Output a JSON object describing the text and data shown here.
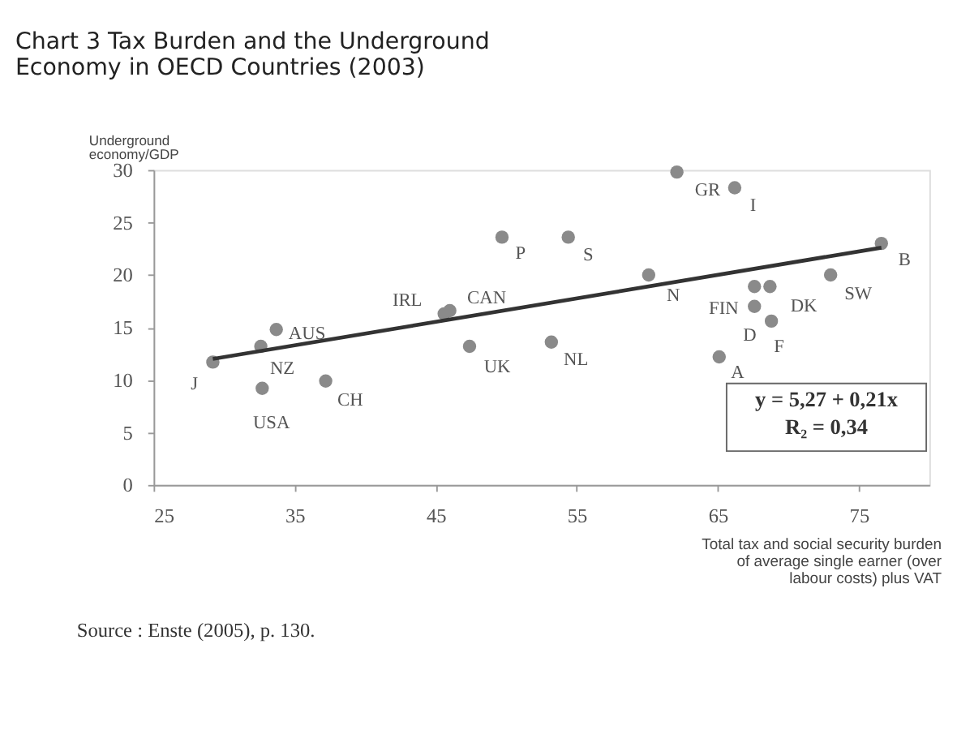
{
  "chart_data": {
    "type": "scatter",
    "title": [
      "Chart 3  Tax Burden and the Underground",
      "Economy in OECD Countries (2003)"
    ],
    "xlabel": "Total tax and social security burden\nof average single earner (over\nlabour costs) plus VAT",
    "ylabel": "Underground\neconomy/GDP",
    "xlim": [
      25,
      80
    ],
    "xticks": [
      25,
      35,
      45,
      55,
      65,
      75
    ],
    "ylim": [
      0,
      30
    ],
    "yticks": [
      0,
      5,
      10,
      15,
      20,
      25,
      30
    ],
    "grid": false,
    "series": [
      {
        "color": "#8a8a8a",
        "marker": "circle",
        "x": [
          29.2,
          32.6,
          33.7,
          32.7,
          37.2,
          45.6,
          46.0,
          47.4,
          49.7,
          54.4,
          53.2,
          60.1,
          62.1,
          66.2,
          67.6,
          68.7,
          67.6,
          68.8,
          65.1,
          73.0,
          76.6
        ],
        "values": [
          11.7,
          13.2,
          14.8,
          9.2,
          9.9,
          16.3,
          16.6,
          13.2,
          23.6,
          23.6,
          13.6,
          20.0,
          29.8,
          28.3,
          18.9,
          18.9,
          17.0,
          15.6,
          12.2,
          20.0,
          23.0
        ]
      },
      {
        "type": "line",
        "color": "#333333",
        "line_style": "solid",
        "x": [
          29.2,
          76.6
        ],
        "values": [
          12.0,
          22.6
        ]
      }
    ],
    "annotations": [
      {
        "text": "J",
        "x": 29.2,
        "y": 11.7
      },
      {
        "text": "NZ",
        "x": 32.6,
        "y": 13.2
      },
      {
        "text": "AUS",
        "x": 33.7,
        "y": 14.8
      },
      {
        "text": "USA",
        "x": 32.7,
        "y": 9.2
      },
      {
        "text": "CH",
        "x": 37.2,
        "y": 9.9
      },
      {
        "text": "IRL",
        "x": 45.6,
        "y": 16.3
      },
      {
        "text": "CAN",
        "x": 46.0,
        "y": 16.6
      },
      {
        "text": "UK",
        "x": 47.4,
        "y": 13.2
      },
      {
        "text": "P",
        "x": 49.7,
        "y": 23.6
      },
      {
        "text": "S",
        "x": 54.4,
        "y": 23.6
      },
      {
        "text": "NL",
        "x": 53.2,
        "y": 13.6
      },
      {
        "text": "N",
        "x": 60.1,
        "y": 20.0
      },
      {
        "text": "GR",
        "x": 62.1,
        "y": 29.8
      },
      {
        "text": "I",
        "x": 66.2,
        "y": 28.3
      },
      {
        "text": "FIN",
        "x": 67.6,
        "y": 17.0
      },
      {
        "text": "DK",
        "x": 68.7,
        "y": 18.9
      },
      {
        "text": "D",
        "x": 67.6,
        "y": 18.9
      },
      {
        "text": "F",
        "x": 68.8,
        "y": 15.6
      },
      {
        "text": "A",
        "x": 65.1,
        "y": 12.2
      },
      {
        "text": "SW",
        "x": 73.0,
        "y": 20.0
      },
      {
        "text": "B",
        "x": 76.6,
        "y": 23.0
      },
      "y = 5,27 + 0,21x\nR₂ = 0,34",
      "Source : Enste (2005), p. 130."
    ]
  }
}
